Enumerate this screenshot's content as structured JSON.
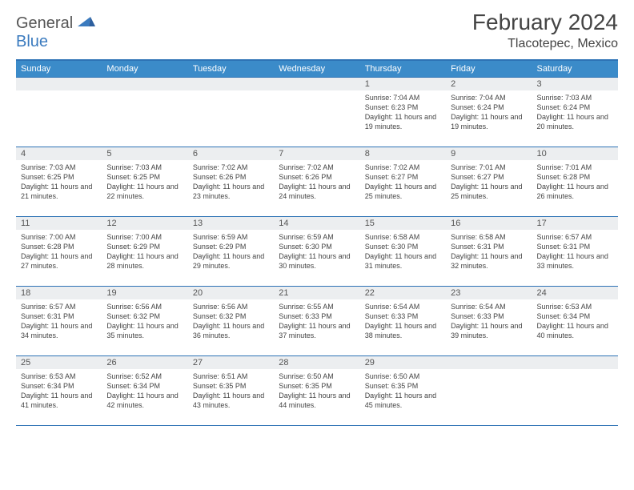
{
  "logo": {
    "word1": "General",
    "word2": "Blue"
  },
  "title": "February 2024",
  "location": "Tlacotepec, Mexico",
  "colors": {
    "header_bg": "#3b8bc9",
    "border": "#2d72b5",
    "band_bg": "#eceef0",
    "text": "#444444",
    "num_text": "#555555"
  },
  "day_headers": [
    "Sunday",
    "Monday",
    "Tuesday",
    "Wednesday",
    "Thursday",
    "Friday",
    "Saturday"
  ],
  "weeks": [
    [
      {
        "num": "",
        "sunrise": "",
        "sunset": "",
        "daylight": ""
      },
      {
        "num": "",
        "sunrise": "",
        "sunset": "",
        "daylight": ""
      },
      {
        "num": "",
        "sunrise": "",
        "sunset": "",
        "daylight": ""
      },
      {
        "num": "",
        "sunrise": "",
        "sunset": "",
        "daylight": ""
      },
      {
        "num": "1",
        "sunrise": "Sunrise: 7:04 AM",
        "sunset": "Sunset: 6:23 PM",
        "daylight": "Daylight: 11 hours and 19 minutes."
      },
      {
        "num": "2",
        "sunrise": "Sunrise: 7:04 AM",
        "sunset": "Sunset: 6:24 PM",
        "daylight": "Daylight: 11 hours and 19 minutes."
      },
      {
        "num": "3",
        "sunrise": "Sunrise: 7:03 AM",
        "sunset": "Sunset: 6:24 PM",
        "daylight": "Daylight: 11 hours and 20 minutes."
      }
    ],
    [
      {
        "num": "4",
        "sunrise": "Sunrise: 7:03 AM",
        "sunset": "Sunset: 6:25 PM",
        "daylight": "Daylight: 11 hours and 21 minutes."
      },
      {
        "num": "5",
        "sunrise": "Sunrise: 7:03 AM",
        "sunset": "Sunset: 6:25 PM",
        "daylight": "Daylight: 11 hours and 22 minutes."
      },
      {
        "num": "6",
        "sunrise": "Sunrise: 7:02 AM",
        "sunset": "Sunset: 6:26 PM",
        "daylight": "Daylight: 11 hours and 23 minutes."
      },
      {
        "num": "7",
        "sunrise": "Sunrise: 7:02 AM",
        "sunset": "Sunset: 6:26 PM",
        "daylight": "Daylight: 11 hours and 24 minutes."
      },
      {
        "num": "8",
        "sunrise": "Sunrise: 7:02 AM",
        "sunset": "Sunset: 6:27 PM",
        "daylight": "Daylight: 11 hours and 25 minutes."
      },
      {
        "num": "9",
        "sunrise": "Sunrise: 7:01 AM",
        "sunset": "Sunset: 6:27 PM",
        "daylight": "Daylight: 11 hours and 25 minutes."
      },
      {
        "num": "10",
        "sunrise": "Sunrise: 7:01 AM",
        "sunset": "Sunset: 6:28 PM",
        "daylight": "Daylight: 11 hours and 26 minutes."
      }
    ],
    [
      {
        "num": "11",
        "sunrise": "Sunrise: 7:00 AM",
        "sunset": "Sunset: 6:28 PM",
        "daylight": "Daylight: 11 hours and 27 minutes."
      },
      {
        "num": "12",
        "sunrise": "Sunrise: 7:00 AM",
        "sunset": "Sunset: 6:29 PM",
        "daylight": "Daylight: 11 hours and 28 minutes."
      },
      {
        "num": "13",
        "sunrise": "Sunrise: 6:59 AM",
        "sunset": "Sunset: 6:29 PM",
        "daylight": "Daylight: 11 hours and 29 minutes."
      },
      {
        "num": "14",
        "sunrise": "Sunrise: 6:59 AM",
        "sunset": "Sunset: 6:30 PM",
        "daylight": "Daylight: 11 hours and 30 minutes."
      },
      {
        "num": "15",
        "sunrise": "Sunrise: 6:58 AM",
        "sunset": "Sunset: 6:30 PM",
        "daylight": "Daylight: 11 hours and 31 minutes."
      },
      {
        "num": "16",
        "sunrise": "Sunrise: 6:58 AM",
        "sunset": "Sunset: 6:31 PM",
        "daylight": "Daylight: 11 hours and 32 minutes."
      },
      {
        "num": "17",
        "sunrise": "Sunrise: 6:57 AM",
        "sunset": "Sunset: 6:31 PM",
        "daylight": "Daylight: 11 hours and 33 minutes."
      }
    ],
    [
      {
        "num": "18",
        "sunrise": "Sunrise: 6:57 AM",
        "sunset": "Sunset: 6:31 PM",
        "daylight": "Daylight: 11 hours and 34 minutes."
      },
      {
        "num": "19",
        "sunrise": "Sunrise: 6:56 AM",
        "sunset": "Sunset: 6:32 PM",
        "daylight": "Daylight: 11 hours and 35 minutes."
      },
      {
        "num": "20",
        "sunrise": "Sunrise: 6:56 AM",
        "sunset": "Sunset: 6:32 PM",
        "daylight": "Daylight: 11 hours and 36 minutes."
      },
      {
        "num": "21",
        "sunrise": "Sunrise: 6:55 AM",
        "sunset": "Sunset: 6:33 PM",
        "daylight": "Daylight: 11 hours and 37 minutes."
      },
      {
        "num": "22",
        "sunrise": "Sunrise: 6:54 AM",
        "sunset": "Sunset: 6:33 PM",
        "daylight": "Daylight: 11 hours and 38 minutes."
      },
      {
        "num": "23",
        "sunrise": "Sunrise: 6:54 AM",
        "sunset": "Sunset: 6:33 PM",
        "daylight": "Daylight: 11 hours and 39 minutes."
      },
      {
        "num": "24",
        "sunrise": "Sunrise: 6:53 AM",
        "sunset": "Sunset: 6:34 PM",
        "daylight": "Daylight: 11 hours and 40 minutes."
      }
    ],
    [
      {
        "num": "25",
        "sunrise": "Sunrise: 6:53 AM",
        "sunset": "Sunset: 6:34 PM",
        "daylight": "Daylight: 11 hours and 41 minutes."
      },
      {
        "num": "26",
        "sunrise": "Sunrise: 6:52 AM",
        "sunset": "Sunset: 6:34 PM",
        "daylight": "Daylight: 11 hours and 42 minutes."
      },
      {
        "num": "27",
        "sunrise": "Sunrise: 6:51 AM",
        "sunset": "Sunset: 6:35 PM",
        "daylight": "Daylight: 11 hours and 43 minutes."
      },
      {
        "num": "28",
        "sunrise": "Sunrise: 6:50 AM",
        "sunset": "Sunset: 6:35 PM",
        "daylight": "Daylight: 11 hours and 44 minutes."
      },
      {
        "num": "29",
        "sunrise": "Sunrise: 6:50 AM",
        "sunset": "Sunset: 6:35 PM",
        "daylight": "Daylight: 11 hours and 45 minutes."
      },
      {
        "num": "",
        "sunrise": "",
        "sunset": "",
        "daylight": ""
      },
      {
        "num": "",
        "sunrise": "",
        "sunset": "",
        "daylight": ""
      }
    ]
  ]
}
